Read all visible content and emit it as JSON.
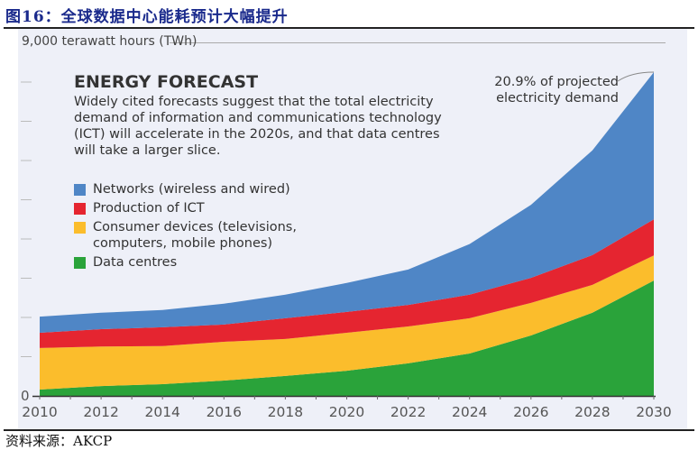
{
  "figure_title": "图16：全球数据中心能耗预计大幅提升",
  "source": "资料来源：AKCP",
  "chart_data": {
    "type": "area",
    "stacked": true,
    "title": "ENERGY FORECAST",
    "subtitle": "Widely cited forecasts suggest that the total electricity demand of information and communications technology (ICT) will accelerate in the 2020s, and that data centres will take a larger slice.",
    "ylabel": "9,000 terawatt hours (TWh)",
    "ylim": [
      0,
      9000
    ],
    "yticks": [
      0,
      1000,
      2000,
      3000,
      4000,
      5000,
      6000,
      7000,
      8000,
      9000
    ],
    "ytick_labels_shown": [
      "0"
    ],
    "xlim": [
      2010,
      2030
    ],
    "x": [
      2010,
      2012,
      2014,
      2016,
      2018,
      2020,
      2022,
      2024,
      2026,
      2028,
      2030
    ],
    "xtick_labels": [
      "2010",
      "2012",
      "2014",
      "2016",
      "2018",
      "2020",
      "2022",
      "2024",
      "2026",
      "2028",
      "2030"
    ],
    "annotation": "20.9% of projected electricity demand",
    "legend_placement": "top-left",
    "series": [
      {
        "name": "Data centres",
        "color": "#2aa33a",
        "values": [
          160,
          250,
          300,
          390,
          510,
          640,
          830,
          1080,
          1540,
          2120,
          2940
        ]
      },
      {
        "name": "Consumer devices (televisions, computers, mobile phones)",
        "color": "#fbbd2c",
        "values": [
          1060,
          1010,
          970,
          990,
          940,
          970,
          940,
          900,
          830,
          710,
          640
        ]
      },
      {
        "name": "Production of ICT",
        "color": "#e52530",
        "values": [
          390,
          440,
          480,
          440,
          530,
          530,
          550,
          600,
          640,
          760,
          920
        ]
      },
      {
        "name": "Networks (wireless and wired)",
        "color": "#4f86c6",
        "values": [
          410,
          420,
          440,
          530,
          600,
          740,
          900,
          1290,
          1860,
          2670,
          3750
        ]
      }
    ],
    "grid": false
  }
}
